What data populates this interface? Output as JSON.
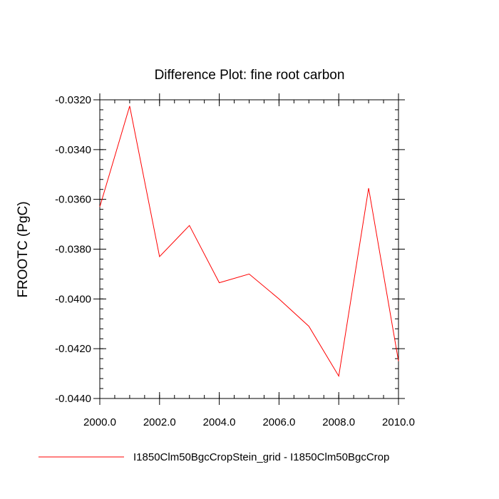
{
  "chart_data": {
    "type": "line",
    "title": "Difference Plot: fine root carbon",
    "xlabel": "",
    "ylabel": "FROOTC  (PgC)",
    "xlim": [
      2000.0,
      2010.0
    ],
    "ylim": [
      -0.044,
      -0.032
    ],
    "x_ticks": [
      2000.0,
      2002.0,
      2004.0,
      2006.0,
      2008.0,
      2010.0
    ],
    "x_tick_labels": [
      "2000.0",
      "2002.0",
      "2004.0",
      "2006.0",
      "2008.0",
      "2010.0"
    ],
    "y_ticks": [
      -0.032,
      -0.034,
      -0.036,
      -0.038,
      -0.04,
      -0.042,
      -0.044
    ],
    "y_tick_labels": [
      "-0.0320",
      "-0.0340",
      "-0.0360",
      "-0.0380",
      "-0.0400",
      "-0.0420",
      "-0.0440"
    ],
    "grid": false,
    "legend_position": "bottom",
    "series": [
      {
        "name": "I1850Clm50BgcCropStein_grid - I1850Clm50BgcCrop",
        "color": "#ff0000",
        "x": [
          2000,
          2001,
          2002,
          2003,
          2004,
          2005,
          2006,
          2007,
          2008,
          2009,
          2010
        ],
        "y": [
          -0.0363,
          -0.03225,
          -0.0383,
          -0.03705,
          -0.03935,
          -0.039,
          -0.04,
          -0.0411,
          -0.0431,
          -0.03555,
          -0.0425
        ]
      }
    ]
  }
}
